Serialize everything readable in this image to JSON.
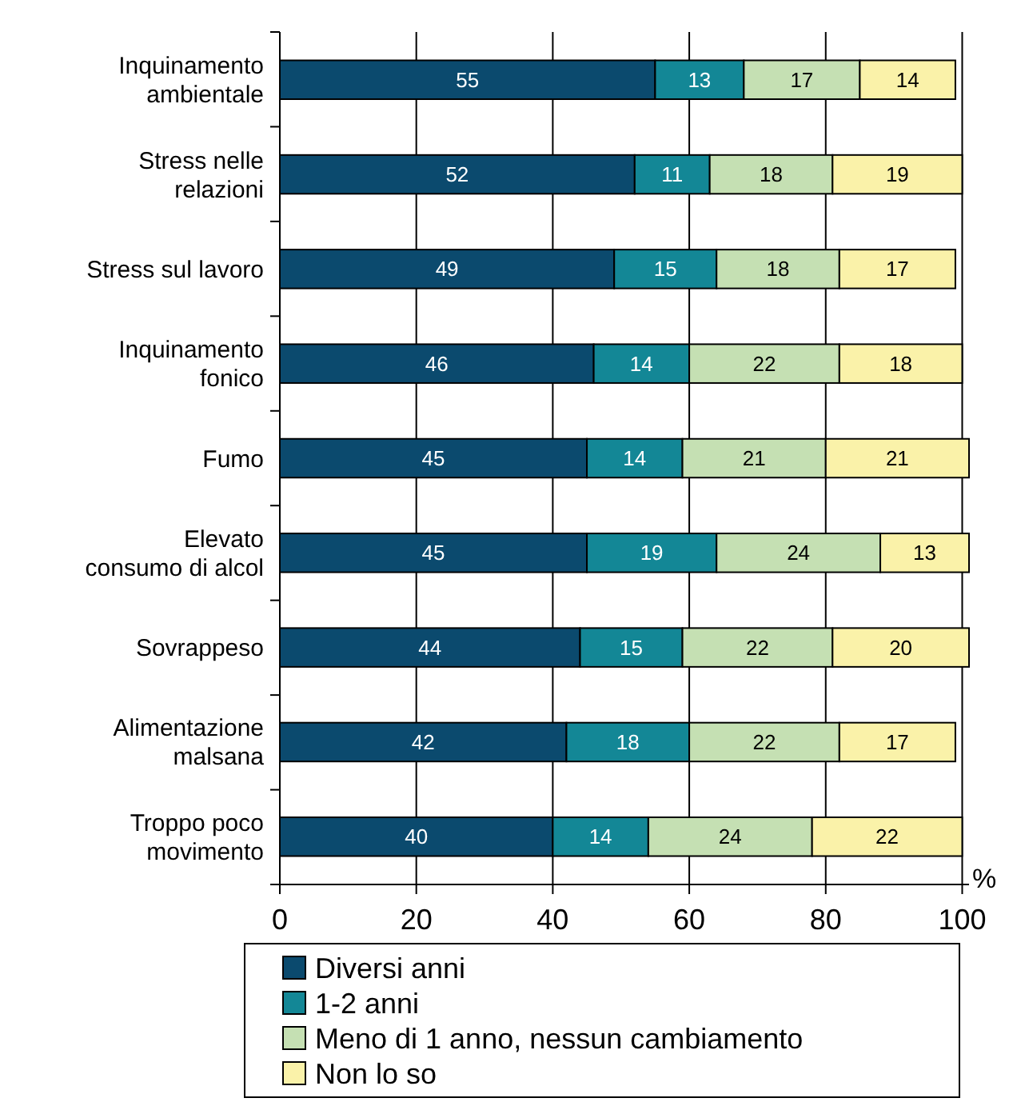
{
  "chart_data": {
    "type": "bar",
    "orientation": "horizontal",
    "stacked": true,
    "categories": [
      "Inquinamento\nambientale",
      "Stress nelle\nrelazioni",
      "Stress sul lavoro",
      "Inquinamento\nfonico",
      "Fumo",
      "Elevato\nconsumo di alcol",
      "Sovrappeso",
      "Alimentazione\nmalsana",
      "Troppo poco\nmovimento"
    ],
    "series": [
      {
        "name": "Diversi anni",
        "color": "#0b4a6e",
        "values": [
          55,
          52,
          49,
          46,
          45,
          45,
          44,
          42,
          40
        ]
      },
      {
        "name": "1-2 anni",
        "color": "#138796",
        "values": [
          13,
          11,
          15,
          14,
          14,
          19,
          15,
          18,
          14
        ]
      },
      {
        "name": "Meno di 1 anno, nessun cambiamento",
        "color": "#c5e0b3",
        "values": [
          17,
          18,
          18,
          22,
          21,
          24,
          22,
          22,
          24
        ]
      },
      {
        "name": "Non lo so",
        "color": "#faf2a9",
        "values": [
          14,
          19,
          17,
          18,
          21,
          13,
          20,
          17,
          22
        ]
      }
    ],
    "xlim": [
      0,
      101
    ],
    "xticks": [
      0,
      20,
      40,
      60,
      80,
      100
    ],
    "xlabel": "%",
    "grid": "x",
    "legend": "bottom",
    "data_labels": true
  }
}
